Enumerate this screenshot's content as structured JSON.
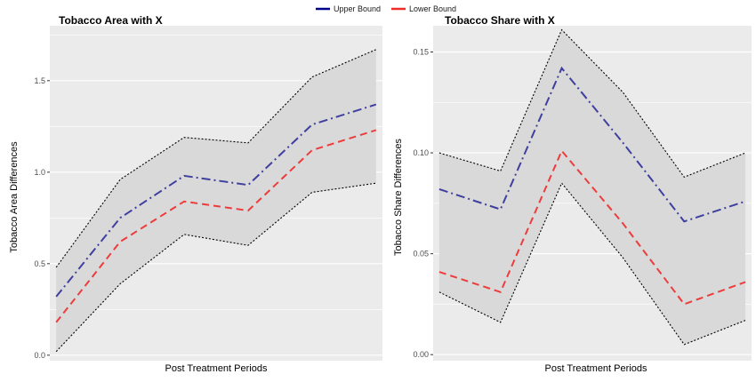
{
  "legend": {
    "placement": "top-center",
    "items": [
      {
        "label": "Upper Bound",
        "color": "#00008B"
      },
      {
        "label": "Lower Bound",
        "color": "#EE2C2C"
      }
    ]
  },
  "colors": {
    "panel_background": "#EBEBEB",
    "gridline": "#FFFFFF",
    "ribbon_fill": "#D9D9D9",
    "ribbon_border": "#000000",
    "upper_line": "#3F3FA0",
    "lower_line": "#EE3B3B"
  },
  "chart_data": [
    {
      "type": "line",
      "title": "Tobacco Area with X",
      "xlabel": "Post Treatment Periods",
      "ylabel": "Tobacco Area Differences",
      "x": [
        1,
        2,
        3,
        4,
        5,
        6
      ],
      "xlim": [
        0.9,
        6.1
      ],
      "ylim": [
        -0.03,
        1.8
      ],
      "yticks": [
        0.0,
        0.5,
        1.0,
        1.5
      ],
      "ytick_labels": [
        "0.0",
        "0.5",
        "1.0",
        "1.5"
      ],
      "grid": true,
      "series": [
        {
          "name": "Upper Bound",
          "values": [
            0.32,
            0.75,
            0.98,
            0.93,
            1.26,
            1.37
          ]
        },
        {
          "name": "Lower Bound",
          "values": [
            0.18,
            0.62,
            0.84,
            0.79,
            1.12,
            1.23
          ]
        }
      ],
      "ribbon": {
        "upper": [
          0.48,
          0.96,
          1.19,
          1.16,
          1.52,
          1.67
        ],
        "lower": [
          0.02,
          0.39,
          0.66,
          0.6,
          0.89,
          0.94
        ]
      }
    },
    {
      "type": "line",
      "title": "Tobacco Share with X",
      "xlabel": "Post Treatment Periods",
      "ylabel": "Tobacco Share Differences",
      "x": [
        1,
        2,
        3,
        4,
        5,
        6
      ],
      "xlim": [
        0.9,
        6.1
      ],
      "ylim": [
        -0.003,
        0.163
      ],
      "yticks": [
        0.0,
        0.05,
        0.1,
        0.15
      ],
      "ytick_labels": [
        "0.00",
        "0.05",
        "0.10",
        "0.15"
      ],
      "grid": true,
      "series": [
        {
          "name": "Upper Bound",
          "values": [
            0.082,
            0.072,
            0.142,
            0.105,
            0.066,
            0.076
          ]
        },
        {
          "name": "Lower Bound",
          "values": [
            0.041,
            0.031,
            0.101,
            0.065,
            0.025,
            0.036
          ]
        }
      ],
      "ribbon": {
        "upper": [
          0.1,
          0.091,
          0.161,
          0.13,
          0.088,
          0.1
        ],
        "lower": [
          0.031,
          0.016,
          0.085,
          0.048,
          0.005,
          0.017
        ]
      }
    }
  ]
}
